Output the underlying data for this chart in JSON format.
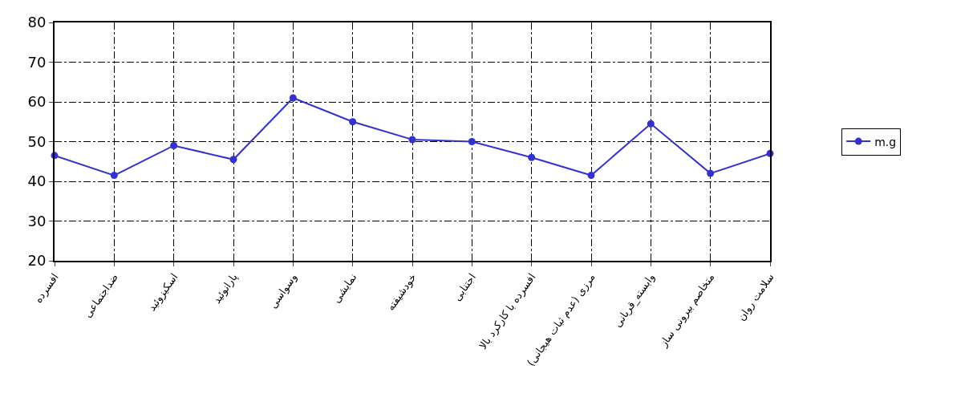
{
  "chart_data": {
    "type": "line",
    "categories": [
      "افسرده",
      "ضداجتماعی",
      "اسکیزوئید",
      "پارانوئید",
      "وسواسی",
      "نمایشی",
      "خودشیفته",
      "اجتنابی",
      "افسرده با کارکرد بالا",
      "مرزی (عدم ثبات هیجانی)",
      "وابسته_قربانی",
      "متخاصم بیرونی ساز",
      "سلامت روان"
    ],
    "series": [
      {
        "name": "m.g",
        "color": "#3333cc",
        "values": [
          46.5,
          41.5,
          49,
          45.5,
          61,
          55,
          50.5,
          50,
          46,
          41.5,
          54.5,
          42,
          47
        ]
      }
    ],
    "ylim": [
      20,
      80
    ],
    "yticks": [
      20,
      30,
      40,
      50,
      60,
      70,
      80
    ],
    "grid": true,
    "legend": "right",
    "marker": "circle",
    "line_style": "solid"
  }
}
